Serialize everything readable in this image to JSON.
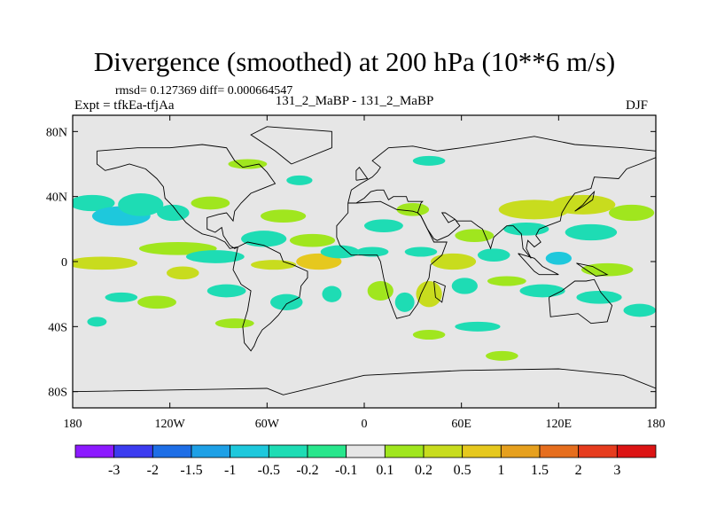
{
  "chart_data": {
    "type": "heatmap",
    "title": "Divergence (smoothed) at 200 hPa (10**6 m/s)",
    "stats": "rmsd= 0.127369 diff= 0.000664547",
    "expt": "Expt = tfkEa-tfjAa",
    "subtitle": "131_2_MaBP - 131_2_MaBP",
    "season": "DJF",
    "lon_range": [
      -180,
      180
    ],
    "lat_range": [
      -90,
      90
    ],
    "x_ticks": [
      {
        "value": -180,
        "label": "180"
      },
      {
        "value": -120,
        "label": "120W"
      },
      {
        "value": -60,
        "label": "60W"
      },
      {
        "value": 0,
        "label": "0"
      },
      {
        "value": 60,
        "label": "60E"
      },
      {
        "value": 120,
        "label": "120E"
      },
      {
        "value": 180,
        "label": "180"
      }
    ],
    "y_ticks": [
      {
        "value": 80,
        "label": "80N"
      },
      {
        "value": 40,
        "label": "40N"
      },
      {
        "value": 0,
        "label": "0"
      },
      {
        "value": -40,
        "label": "40S"
      },
      {
        "value": -80,
        "label": "80S"
      }
    ],
    "colorbar": {
      "levels": [
        "-3",
        "-2",
        "-1.5",
        "-1",
        "-0.5",
        "-0.2",
        "-0.1",
        "0.1",
        "0.2",
        "0.5",
        "1",
        "1.5",
        "2",
        "3"
      ],
      "colors": [
        "#8c1aff",
        "#3c3cf0",
        "#1e6ee6",
        "#1ea0e6",
        "#1ec8dc",
        "#1edcb4",
        "#28e68c",
        "#e6e6e6",
        "#a0e61e",
        "#c8dc1e",
        "#e6c81e",
        "#e6a01e",
        "#e66e1e",
        "#e63c1e",
        "#dc1414"
      ]
    },
    "regions": [
      {
        "lon": -162,
        "lat": -1,
        "rx": 22,
        "ry": 4,
        "bin": 9
      },
      {
        "lon": -168,
        "lat": 36,
        "rx": 14,
        "ry": 5,
        "bin": 5
      },
      {
        "lon": -150,
        "lat": 28,
        "rx": 18,
        "ry": 6,
        "bin": 4
      },
      {
        "lon": -138,
        "lat": 35,
        "rx": 14,
        "ry": 7,
        "bin": 5
      },
      {
        "lon": -118,
        "lat": 30,
        "rx": 10,
        "ry": 5,
        "bin": 5
      },
      {
        "lon": -115,
        "lat": 8,
        "rx": 24,
        "ry": 4,
        "bin": 8
      },
      {
        "lon": -112,
        "lat": -7,
        "rx": 10,
        "ry": 4,
        "bin": 9
      },
      {
        "lon": -128,
        "lat": -25,
        "rx": 12,
        "ry": 4,
        "bin": 8
      },
      {
        "lon": -150,
        "lat": -22,
        "rx": 10,
        "ry": 3,
        "bin": 5
      },
      {
        "lon": -95,
        "lat": 36,
        "rx": 12,
        "ry": 4,
        "bin": 8
      },
      {
        "lon": -92,
        "lat": 3,
        "rx": 18,
        "ry": 4,
        "bin": 5
      },
      {
        "lon": -85,
        "lat": -18,
        "rx": 12,
        "ry": 4,
        "bin": 5
      },
      {
        "lon": -80,
        "lat": -38,
        "rx": 12,
        "ry": 3,
        "bin": 8
      },
      {
        "lon": -165,
        "lat": -37,
        "rx": 6,
        "ry": 3,
        "bin": 5
      },
      {
        "lon": -72,
        "lat": 60,
        "rx": 12,
        "ry": 3,
        "bin": 8
      },
      {
        "lon": -62,
        "lat": 14,
        "rx": 14,
        "ry": 5,
        "bin": 5
      },
      {
        "lon": -56,
        "lat": -2,
        "rx": 14,
        "ry": 3,
        "bin": 9
      },
      {
        "lon": -50,
        "lat": 28,
        "rx": 14,
        "ry": 4,
        "bin": 8
      },
      {
        "lon": -48,
        "lat": -25,
        "rx": 10,
        "ry": 5,
        "bin": 5
      },
      {
        "lon": -32,
        "lat": 13,
        "rx": 14,
        "ry": 4,
        "bin": 8
      },
      {
        "lon": -28,
        "lat": 0,
        "rx": 14,
        "ry": 5,
        "bin": 10
      },
      {
        "lon": -20,
        "lat": -20,
        "rx": 6,
        "ry": 5,
        "bin": 5
      },
      {
        "lon": -15,
        "lat": 6,
        "rx": 12,
        "ry": 4,
        "bin": 5
      },
      {
        "lon": 5,
        "lat": 6,
        "rx": 10,
        "ry": 3,
        "bin": 5
      },
      {
        "lon": 10,
        "lat": -18,
        "rx": 8,
        "ry": 6,
        "bin": 8
      },
      {
        "lon": 12,
        "lat": 22,
        "rx": 12,
        "ry": 4,
        "bin": 5
      },
      {
        "lon": 30,
        "lat": 32,
        "rx": 10,
        "ry": 4,
        "bin": 8
      },
      {
        "lon": 35,
        "lat": 6,
        "rx": 10,
        "ry": 3,
        "bin": 5
      },
      {
        "lon": 40,
        "lat": -20,
        "rx": 8,
        "ry": 8,
        "bin": 9
      },
      {
        "lon": 25,
        "lat": -25,
        "rx": 6,
        "ry": 6,
        "bin": 5
      },
      {
        "lon": 55,
        "lat": 0,
        "rx": 14,
        "ry": 5,
        "bin": 9
      },
      {
        "lon": 68,
        "lat": 16,
        "rx": 12,
        "ry": 4,
        "bin": 8
      },
      {
        "lon": 62,
        "lat": -15,
        "rx": 8,
        "ry": 5,
        "bin": 5
      },
      {
        "lon": 80,
        "lat": 4,
        "rx": 10,
        "ry": 4,
        "bin": 5
      },
      {
        "lon": 88,
        "lat": -12,
        "rx": 12,
        "ry": 3,
        "bin": 8
      },
      {
        "lon": 40,
        "lat": -45,
        "rx": 10,
        "ry": 3,
        "bin": 8
      },
      {
        "lon": 70,
        "lat": -40,
        "rx": 14,
        "ry": 3,
        "bin": 5
      },
      {
        "lon": 85,
        "lat": -58,
        "rx": 10,
        "ry": 3,
        "bin": 8
      },
      {
        "lon": 105,
        "lat": 32,
        "rx": 22,
        "ry": 6,
        "bin": 9
      },
      {
        "lon": 100,
        "lat": 20,
        "rx": 14,
        "ry": 4,
        "bin": 5
      },
      {
        "lon": 120,
        "lat": 2,
        "rx": 8,
        "ry": 4,
        "bin": 4
      },
      {
        "lon": 110,
        "lat": -18,
        "rx": 14,
        "ry": 4,
        "bin": 5
      },
      {
        "lon": 135,
        "lat": 35,
        "rx": 20,
        "ry": 6,
        "bin": 9
      },
      {
        "lon": 140,
        "lat": 18,
        "rx": 16,
        "ry": 5,
        "bin": 5
      },
      {
        "lon": 150,
        "lat": -5,
        "rx": 16,
        "ry": 4,
        "bin": 8
      },
      {
        "lon": 145,
        "lat": -22,
        "rx": 14,
        "ry": 4,
        "bin": 5
      },
      {
        "lon": 165,
        "lat": 30,
        "rx": 14,
        "ry": 5,
        "bin": 8
      },
      {
        "lon": 170,
        "lat": -30,
        "rx": 10,
        "ry": 4,
        "bin": 5
      },
      {
        "lon": 40,
        "lat": 62,
        "rx": 10,
        "ry": 3,
        "bin": 5
      },
      {
        "lon": -40,
        "lat": 50,
        "rx": 8,
        "ry": 3,
        "bin": 5
      }
    ],
    "coastlines": [
      [
        [
          -165,
          68
        ],
        [
          -140,
          70
        ],
        [
          -120,
          70
        ],
        [
          -100,
          72
        ],
        [
          -85,
          70
        ],
        [
          -80,
          62
        ],
        [
          -75,
          58
        ],
        [
          -65,
          60
        ],
        [
          -60,
          55
        ],
        [
          -55,
          48
        ],
        [
          -65,
          44
        ],
        [
          -70,
          42
        ],
        [
          -76,
          36
        ],
        [
          -80,
          31
        ],
        [
          -81,
          25
        ],
        [
          -85,
          30
        ],
        [
          -90,
          29
        ],
        [
          -97,
          27
        ],
        [
          -97,
          20
        ],
        [
          -92,
          18
        ],
        [
          -88,
          21
        ],
        [
          -87,
          16
        ],
        [
          -83,
          10
        ],
        [
          -80,
          8
        ],
        [
          -78,
          9
        ],
        [
          -83,
          8
        ],
        [
          -86,
          12
        ],
        [
          -92,
          15
        ],
        [
          -100,
          17
        ],
        [
          -105,
          20
        ],
        [
          -110,
          24
        ],
        [
          -115,
          30
        ],
        [
          -118,
          34
        ],
        [
          -123,
          39
        ],
        [
          -124,
          46
        ],
        [
          -128,
          51
        ],
        [
          -135,
          57
        ],
        [
          -145,
          60
        ],
        [
          -152,
          58
        ],
        [
          -160,
          56
        ],
        [
          -165,
          60
        ],
        [
          -165,
          68
        ]
      ],
      [
        [
          -78,
          9
        ],
        [
          -72,
          12
        ],
        [
          -62,
          10
        ],
        [
          -52,
          5
        ],
        [
          -50,
          0
        ],
        [
          -44,
          -2
        ],
        [
          -35,
          -6
        ],
        [
          -35,
          -10
        ],
        [
          -39,
          -15
        ],
        [
          -40,
          -22
        ],
        [
          -48,
          -26
        ],
        [
          -53,
          -33
        ],
        [
          -58,
          -38
        ],
        [
          -63,
          -42
        ],
        [
          -66,
          -47
        ],
        [
          -68,
          -52
        ],
        [
          -70,
          -55
        ],
        [
          -74,
          -50
        ],
        [
          -75,
          -40
        ],
        [
          -72,
          -30
        ],
        [
          -70,
          -18
        ],
        [
          -76,
          -14
        ],
        [
          -81,
          -5
        ],
        [
          -80,
          0
        ],
        [
          -78,
          9
        ]
      ],
      [
        [
          -45,
          60
        ],
        [
          -20,
          70
        ],
        [
          -20,
          80
        ],
        [
          -60,
          83
        ],
        [
          -70,
          78
        ],
        [
          -55,
          68
        ],
        [
          -45,
          60
        ]
      ],
      [
        [
          -10,
          36
        ],
        [
          -5,
          36
        ],
        [
          10,
          37
        ],
        [
          20,
          32
        ],
        [
          30,
          31
        ],
        [
          33,
          30
        ],
        [
          35,
          28
        ],
        [
          43,
          12
        ],
        [
          51,
          12
        ],
        [
          48,
          4
        ],
        [
          41,
          -2
        ],
        [
          40,
          -10
        ],
        [
          35,
          -20
        ],
        [
          33,
          -26
        ],
        [
          28,
          -33
        ],
        [
          20,
          -35
        ],
        [
          18,
          -30
        ],
        [
          15,
          -22
        ],
        [
          12,
          -10
        ],
        [
          10,
          0
        ],
        [
          8,
          4
        ],
        [
          -8,
          4
        ],
        [
          -15,
          10
        ],
        [
          -17,
          15
        ],
        [
          -17,
          22
        ],
        [
          -10,
          30
        ],
        [
          -10,
          36
        ]
      ],
      [
        [
          -10,
          36
        ],
        [
          -8,
          44
        ],
        [
          -2,
          48
        ],
        [
          5,
          52
        ],
        [
          8,
          55
        ],
        [
          10,
          58
        ],
        [
          5,
          62
        ],
        [
          15,
          70
        ],
        [
          30,
          71
        ],
        [
          45,
          68
        ],
        [
          60,
          70
        ],
        [
          80,
          73
        ],
        [
          105,
          77
        ],
        [
          130,
          72
        ],
        [
          160,
          70
        ],
        [
          180,
          68
        ],
        [
          180,
          64
        ],
        [
          170,
          60
        ],
        [
          162,
          57
        ],
        [
          157,
          51
        ],
        [
          142,
          52
        ],
        [
          140,
          45
        ],
        [
          130,
          42
        ],
        [
          127,
          38
        ],
        [
          125,
          35
        ],
        [
          122,
          30
        ],
        [
          121,
          25
        ],
        [
          113,
          22
        ],
        [
          108,
          20
        ],
        [
          106,
          16
        ],
        [
          109,
          12
        ],
        [
          105,
          9
        ],
        [
          101,
          13
        ],
        [
          100,
          8
        ],
        [
          103,
          2
        ],
        [
          98,
          8
        ],
        [
          97,
          17
        ],
        [
          92,
          22
        ],
        [
          88,
          22
        ],
        [
          80,
          15
        ],
        [
          78,
          8
        ],
        [
          73,
          20
        ],
        [
          70,
          22
        ],
        [
          66,
          25
        ],
        [
          57,
          25
        ],
        [
          56,
          26
        ],
        [
          50,
          30
        ],
        [
          48,
          30
        ],
        [
          52,
          24
        ],
        [
          56,
          26
        ],
        [
          59,
          22
        ],
        [
          52,
          16
        ],
        [
          45,
          13
        ],
        [
          43,
          14
        ],
        [
          39,
          20
        ],
        [
          35,
          28
        ],
        [
          33,
          30
        ],
        [
          35,
          36
        ],
        [
          36,
          37
        ],
        [
          27,
          37
        ],
        [
          26,
          40
        ],
        [
          22,
          40
        ],
        [
          18,
          40
        ],
        [
          15,
          38
        ],
        [
          12,
          44
        ],
        [
          8,
          44
        ],
        [
          4,
          43
        ],
        [
          0,
          39
        ],
        [
          -5,
          36
        ],
        [
          -10,
          36
        ]
      ],
      [
        [
          114,
          -22
        ],
        [
          122,
          -18
        ],
        [
          130,
          -12
        ],
        [
          137,
          -12
        ],
        [
          142,
          -11
        ],
        [
          146,
          -19
        ],
        [
          153,
          -27
        ],
        [
          150,
          -37
        ],
        [
          140,
          -38
        ],
        [
          132,
          -32
        ],
        [
          115,
          -34
        ],
        [
          114,
          -22
        ]
      ],
      [
        [
          -180,
          -80
        ],
        [
          -60,
          -78
        ],
        [
          -50,
          -82
        ],
        [
          0,
          -70
        ],
        [
          60,
          -67
        ],
        [
          120,
          -66
        ],
        [
          160,
          -70
        ],
        [
          180,
          -78
        ]
      ],
      [
        [
          95,
          5
        ],
        [
          105,
          -6
        ],
        [
          108,
          -8
        ],
        [
          115,
          -8
        ],
        [
          120,
          -8
        ],
        [
          110,
          -3
        ],
        [
          105,
          2
        ],
        [
          95,
          5
        ]
      ],
      [
        [
          131,
          -1
        ],
        [
          141,
          -3
        ],
        [
          150,
          -8
        ],
        [
          143,
          -9
        ],
        [
          137,
          -5
        ],
        [
          131,
          -1
        ]
      ],
      [
        [
          -5,
          50
        ],
        [
          2,
          51
        ],
        [
          -3,
          58
        ],
        [
          -5,
          56
        ],
        [
          -5,
          50
        ]
      ],
      [
        [
          130,
          31
        ],
        [
          135,
          34
        ],
        [
          141,
          38
        ],
        [
          142,
          43
        ],
        [
          140,
          41
        ],
        [
          135,
          35
        ],
        [
          130,
          31
        ]
      ],
      [
        [
          43,
          -12
        ],
        [
          50,
          -15
        ],
        [
          48,
          -25
        ],
        [
          44,
          -22
        ],
        [
          43,
          -12
        ]
      ]
    ]
  }
}
